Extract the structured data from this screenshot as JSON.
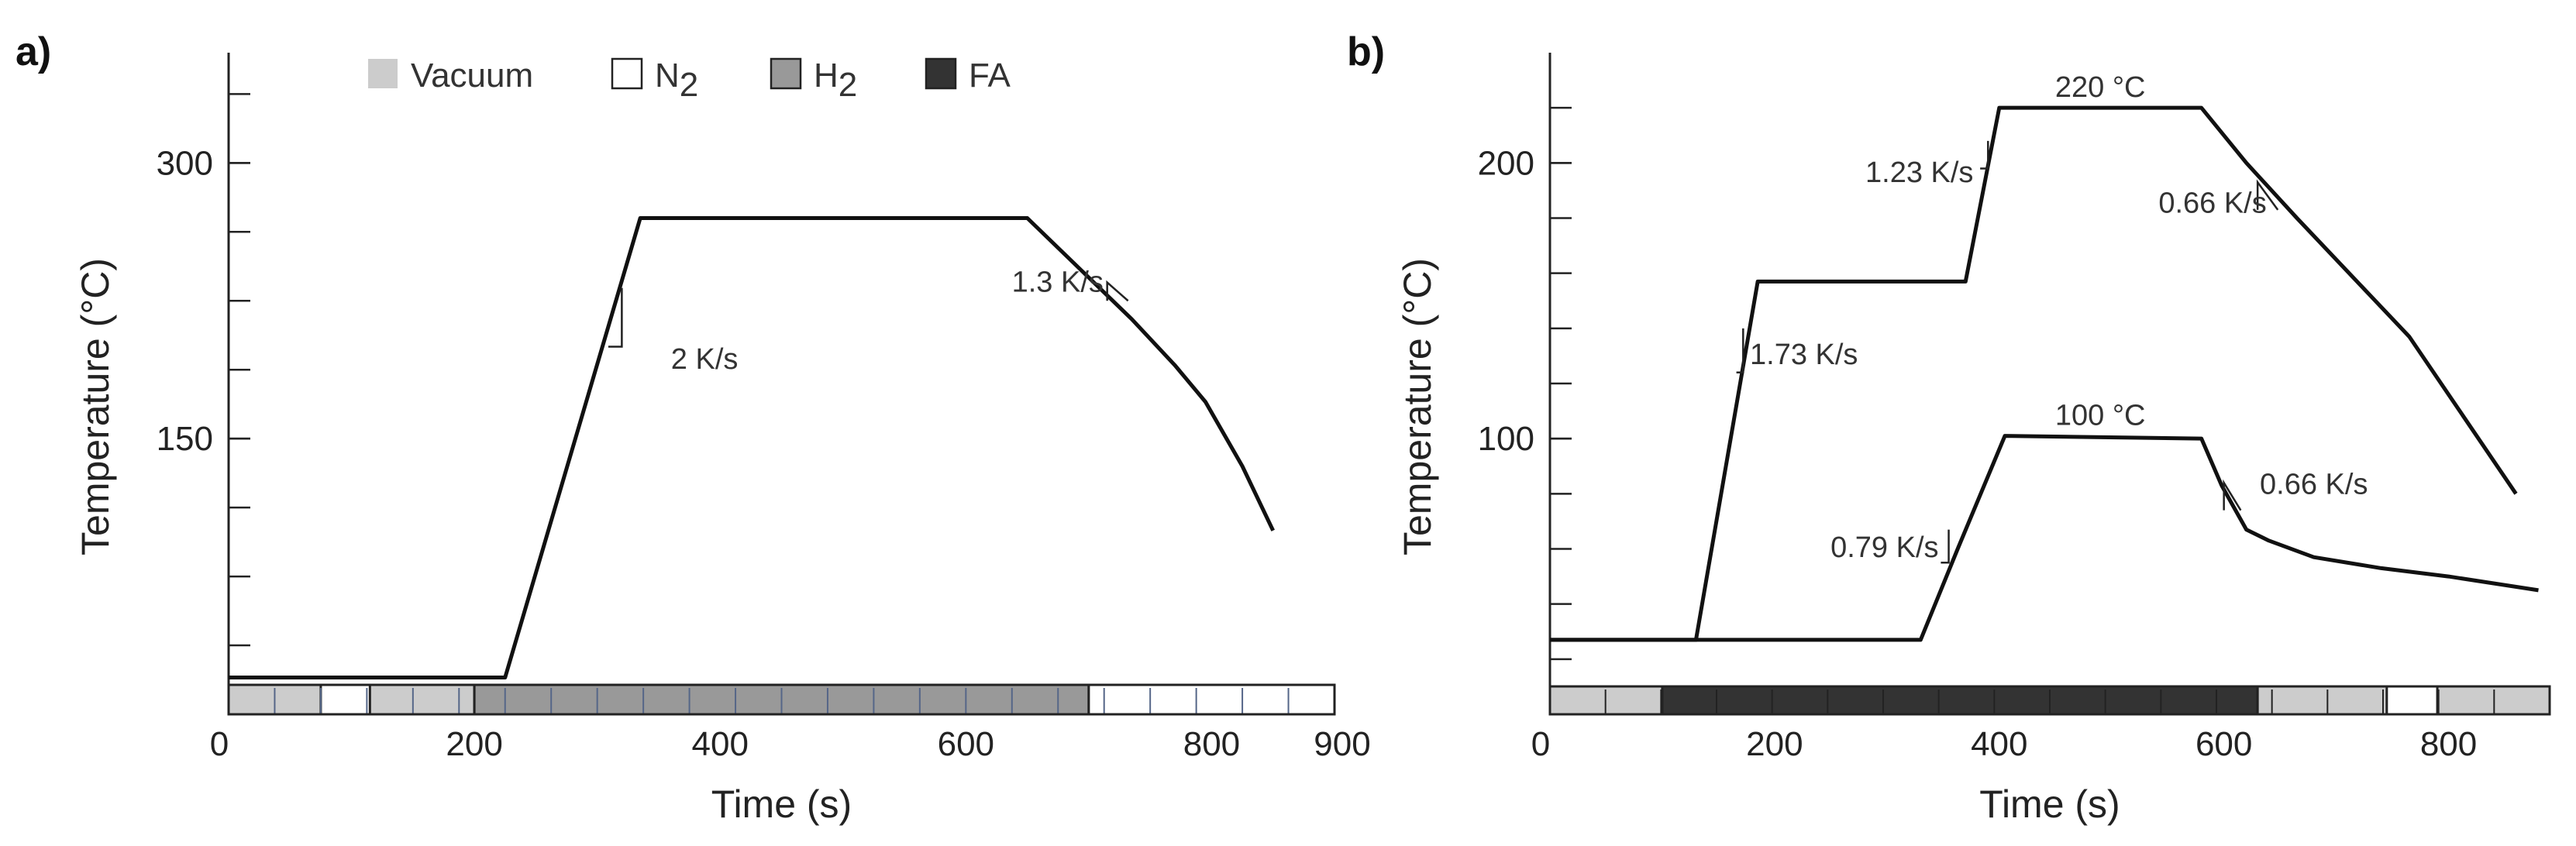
{
  "chart_data": [
    {
      "panel": "a)",
      "type": "line",
      "xlabel": "Time (s)",
      "ylabel": "Temperature (°C)",
      "xlim": [
        0,
        900
      ],
      "ylim": [
        0,
        360
      ],
      "xticks": [
        0,
        200,
        400,
        600,
        800,
        900
      ],
      "yticks": [
        150,
        300
      ],
      "grid": false,
      "legend": {
        "placement": "top",
        "items": [
          {
            "name": "Vacuum",
            "color": "#cccccc"
          },
          {
            "name": "N2",
            "base": "N",
            "sub": "2",
            "color": "#ffffff"
          },
          {
            "name": "H2",
            "base": "H",
            "sub": "2",
            "color": "#999999"
          },
          {
            "name": "FA",
            "color": "#333333"
          }
        ]
      },
      "series": [
        {
          "name": "temperature",
          "x": [
            0,
            225,
            335,
            650,
            735,
            770,
            795,
            825,
            850
          ],
          "y": [
            20,
            20,
            270,
            270,
            215,
            190,
            170,
            135,
            100
          ]
        }
      ],
      "annotations": [
        {
          "text": "2 K/s",
          "x": 360,
          "y": 188,
          "anchor": "start"
        },
        {
          "text": "1.3 K/s",
          "x": 712,
          "y": 230,
          "anchor": "end"
        }
      ],
      "slope_markers": [
        {
          "x0": 320,
          "y0": 200,
          "x1": 320,
          "y1": 232,
          "x2": 309,
          "y2": 200
        },
        {
          "x0": 715,
          "y0": 235,
          "x1": 715,
          "y1": 225,
          "x2": 732,
          "y2": 225
        }
      ],
      "gas_bar": {
        "segments": [
          {
            "gas": "Vacuum",
            "start": 0,
            "end": 200
          },
          {
            "gas": "N2",
            "start": 75,
            "end": 115
          },
          {
            "gas": "H2",
            "start": 200,
            "end": 700
          },
          {
            "gas": "N2",
            "start": 700,
            "end": 900
          }
        ]
      }
    },
    {
      "panel": "b)",
      "type": "line",
      "xlabel": "Time (s)",
      "ylabel": "Temperature (°C)",
      "xlim": [
        0,
        890
      ],
      "ylim": [
        0,
        240
      ],
      "xticks": [
        0,
        200,
        400,
        600,
        800
      ],
      "yticks": [
        100,
        200
      ],
      "grid": false,
      "series": [
        {
          "name": "220 °C profile",
          "x": [
            0,
            130,
            185,
            370,
            400,
            580,
            620,
            665,
            765,
            860
          ],
          "y": [
            27,
            27,
            157,
            157,
            220,
            220,
            200,
            180,
            137,
            80
          ]
        },
        {
          "name": "100 °C profile",
          "x": [
            0,
            330,
            363,
            405,
            580,
            598,
            620,
            640,
            680,
            740,
            800,
            880
          ],
          "y": [
            27,
            27,
            60,
            101,
            100,
            83,
            67,
            63,
            57,
            53,
            50,
            45
          ]
        }
      ],
      "annotations": [
        {
          "text": "220 °C",
          "x": 490,
          "y": 224,
          "anchor": "middle"
        },
        {
          "text": "1.23 K/s",
          "x": 377,
          "y": 193,
          "anchor": "end"
        },
        {
          "text": "0.66 K/s",
          "x": 638,
          "y": 182,
          "anchor": "end"
        },
        {
          "text": "1.73 K/s",
          "x": 178,
          "y": 127,
          "anchor": "start"
        },
        {
          "text": "100 °C",
          "x": 490,
          "y": 105,
          "anchor": "middle"
        },
        {
          "text": "0.79 K/s",
          "x": 346,
          "y": 57,
          "anchor": "end"
        },
        {
          "text": "0.66 K/s",
          "x": 632,
          "y": 80,
          "anchor": "start"
        }
      ],
      "slope_markers": [
        {
          "x0": 390,
          "y0": 198,
          "x1": 390,
          "y1": 208,
          "x2": 383,
          "y2": 198
        },
        {
          "x0": 630,
          "y0": 193,
          "x1": 630,
          "y1": 183,
          "x2": 648,
          "y2": 183
        },
        {
          "x0": 172,
          "y0": 124,
          "x1": 172,
          "y1": 140,
          "x2": 166,
          "y2": 124
        },
        {
          "x0": 355,
          "y0": 55,
          "x1": 355,
          "y1": 67,
          "x2": 348,
          "y2": 55
        },
        {
          "x0": 600,
          "y0": 84,
          "x1": 600,
          "y1": 74,
          "x2": 615,
          "y2": 74
        }
      ],
      "gas_bar": {
        "segments": [
          {
            "gas": "Vacuum",
            "start": 0,
            "end": 100
          },
          {
            "gas": "FA",
            "start": 100,
            "end": 630
          },
          {
            "gas": "Vacuum",
            "start": 630,
            "end": 890
          },
          {
            "gas": "N2",
            "start": 745,
            "end": 790
          }
        ]
      }
    }
  ]
}
